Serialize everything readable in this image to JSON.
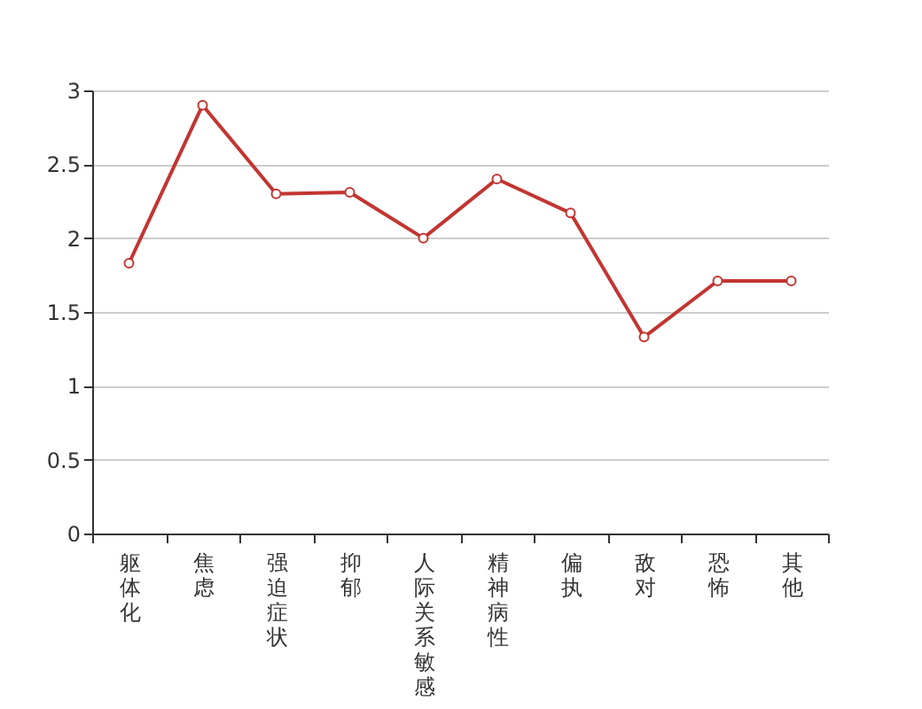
{
  "chart_data": {
    "type": "line",
    "categories": [
      "躯体化",
      "焦虑",
      "强迫症状",
      "抑郁",
      "人际关系敏感",
      "精神病性",
      "偏执",
      "敌对",
      "恐怖",
      "其他"
    ],
    "series": [
      {
        "color": "#c23531",
        "values": [
          1.83,
          2.9,
          2.3,
          2.31,
          2.0,
          2.4,
          2.17,
          1.33,
          1.71,
          1.71
        ]
      }
    ],
    "ylim": [
      0,
      3
    ],
    "yticks": [
      0,
      0.5,
      1,
      1.5,
      2,
      2.5,
      3
    ],
    "grid": "y",
    "marker": "circle",
    "line_style": "solid"
  }
}
